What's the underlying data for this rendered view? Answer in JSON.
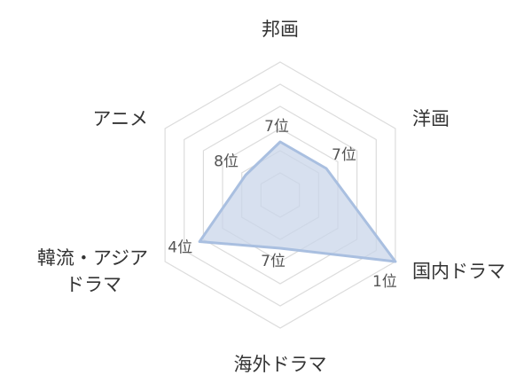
{
  "chart_data": {
    "type": "radar",
    "axes": [
      {
        "name": "邦画",
        "lines": [
          "邦画"
        ],
        "rank": 7,
        "rank_label": "7位"
      },
      {
        "name": "洋画",
        "lines": [
          "洋画"
        ],
        "rank": 7,
        "rank_label": "7位"
      },
      {
        "name": "国内ドラマ",
        "lines": [
          "国内ドラマ"
        ],
        "rank": 1,
        "rank_label": "1位"
      },
      {
        "name": "海外ドラマ",
        "lines": [
          "海外ドラマ"
        ],
        "rank": 7,
        "rank_label": "7位"
      },
      {
        "name": "韓流・アジアドラマ",
        "lines": [
          "韓流・アジア",
          "ドラマ"
        ],
        "rank": 4,
        "rank_label": "4位"
      },
      {
        "name": "アニメ",
        "lines": [
          "アニメ"
        ],
        "rank": 8,
        "rank_label": "8位"
      }
    ],
    "rank_range": [
      1,
      10
    ],
    "grid_rings": 6,
    "colors": {
      "fill": "#c9d6ea",
      "stroke": "#a9bfe0",
      "grid": "#dcdcdc"
    }
  }
}
